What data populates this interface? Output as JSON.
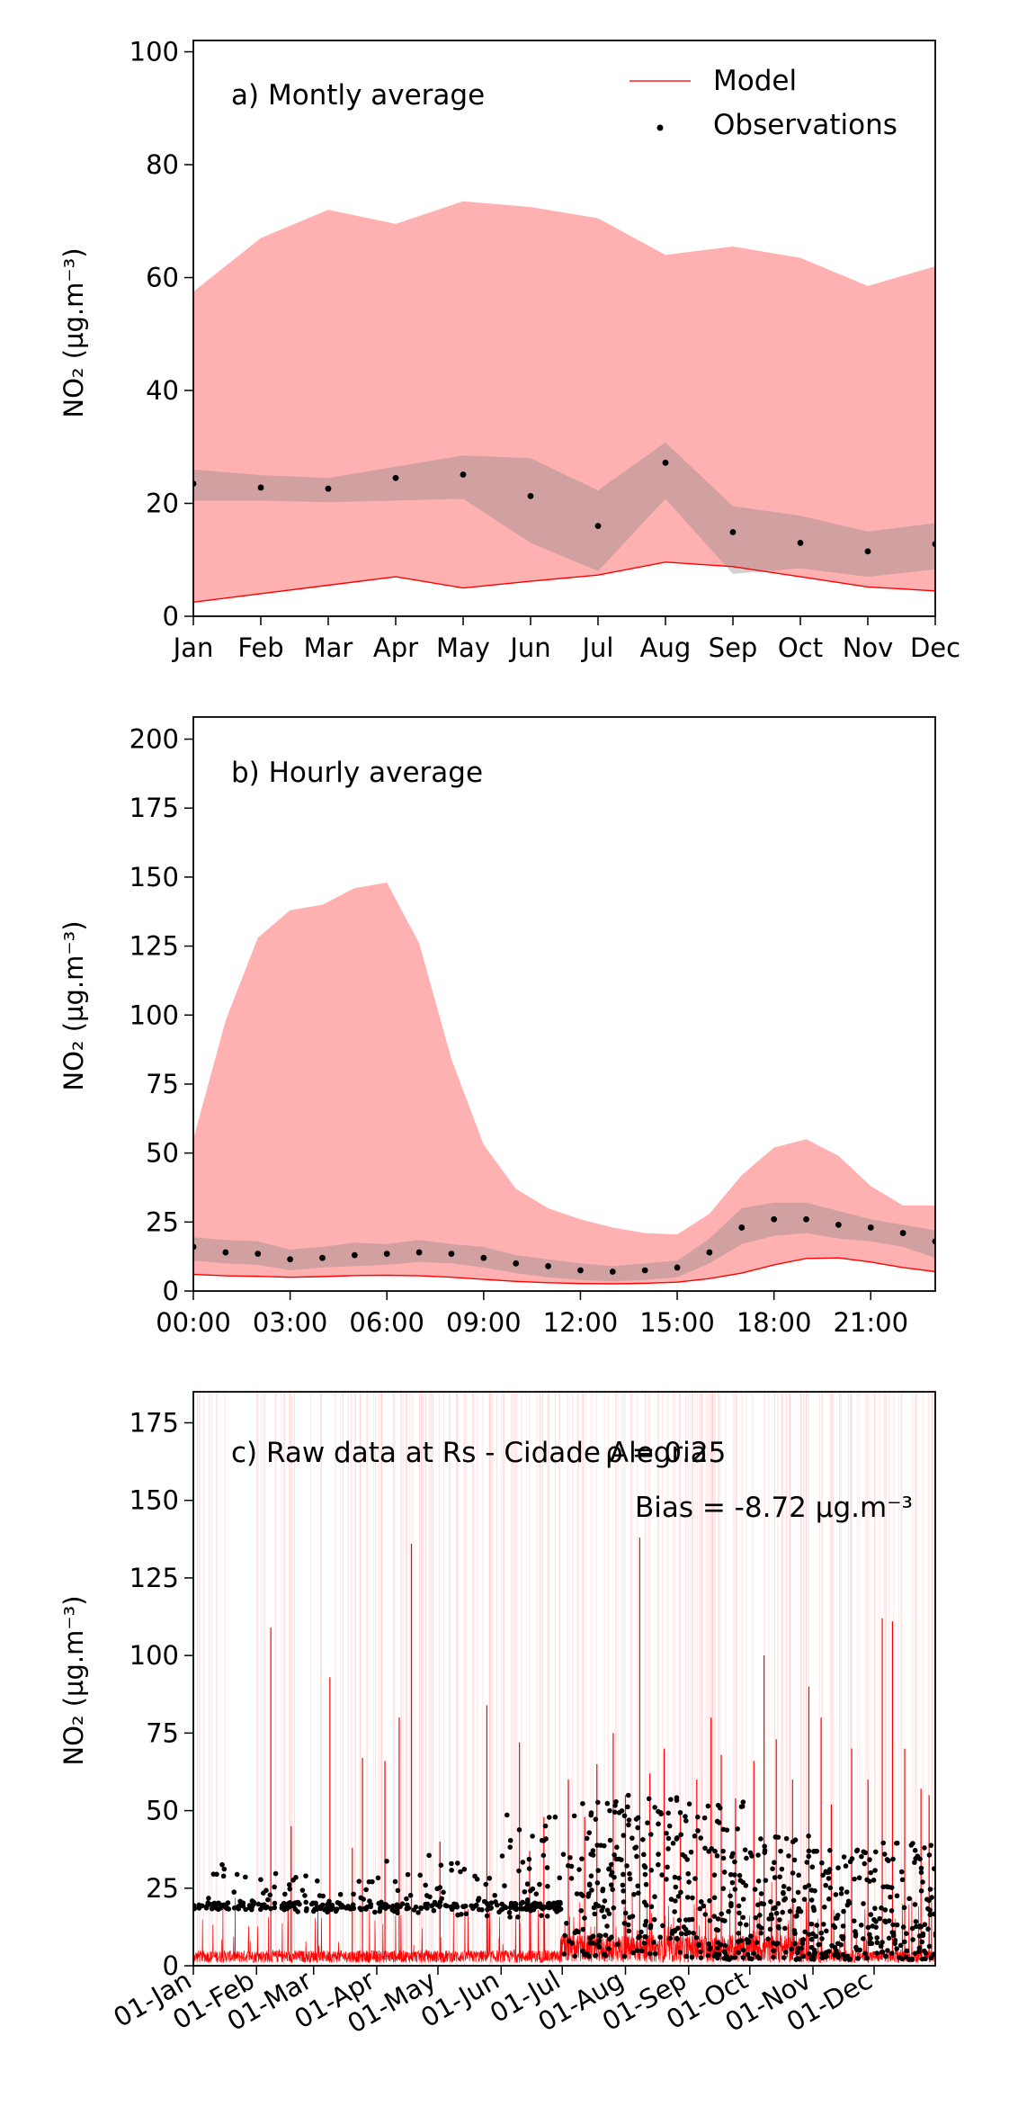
{
  "colors": {
    "model_line": "#ff0000",
    "model_band": "#ffb0b0",
    "obs_band": "#8c8c8c",
    "observations": "#000000",
    "raw_spikes": "#ffc8c8"
  },
  "chart_data": [
    {
      "type": "area",
      "panel_label": "a) Montly average",
      "ylabel": "NO₂ (µg.m⁻³)",
      "xlabel": "",
      "ylim": [
        0,
        102
      ],
      "yticks": [
        0,
        20,
        40,
        60,
        80,
        100
      ],
      "categories": [
        "Jan",
        "Feb",
        "Mar",
        "Apr",
        "May",
        "Jun",
        "Jul",
        "Aug",
        "Sep",
        "Oct",
        "Nov",
        "Dec"
      ],
      "legend": {
        "placement": "top-right",
        "entries": [
          "Model",
          "Observations"
        ]
      },
      "grid": false,
      "series": [
        {
          "name": "Model",
          "kind": "line",
          "values": [
            2.5,
            4.0,
            5.5,
            7.0,
            5.0,
            6.2,
            7.3,
            9.6,
            8.8,
            7.0,
            5.2,
            4.5
          ]
        },
        {
          "kind": "band",
          "lower": [
            2.5,
            4.0,
            5.5,
            7.0,
            5.0,
            6.2,
            7.3,
            9.6,
            8.8,
            7.0,
            5.2,
            4.5
          ],
          "upper": [
            57.5,
            67.0,
            72.0,
            69.5,
            73.5,
            72.5,
            70.5,
            64.0,
            65.5,
            63.5,
            58.5,
            62.0
          ]
        },
        {
          "name": "Observations",
          "kind": "scatter",
          "values": [
            23.5,
            22.8,
            22.6,
            24.5,
            25.1,
            21.3,
            16.0,
            27.2,
            14.9,
            13.0,
            11.5,
            12.8
          ]
        },
        {
          "kind": "band",
          "lower": [
            20.5,
            20.5,
            20.2,
            20.5,
            20.8,
            13.0,
            8.0,
            20.8,
            7.5,
            8.5,
            7.0,
            8.3
          ],
          "upper": [
            26.0,
            25.0,
            24.5,
            26.5,
            28.5,
            28.0,
            22.3,
            30.8,
            19.5,
            17.8,
            15.0,
            16.5
          ]
        }
      ]
    },
    {
      "type": "area",
      "panel_label": "b) Hourly average",
      "ylabel": "NO₂ (µg.m⁻³)",
      "xlabel": "",
      "ylim": [
        0,
        208
      ],
      "yticks": [
        0,
        25,
        50,
        75,
        100,
        125,
        150,
        175,
        200
      ],
      "xlim": [
        0,
        23
      ],
      "x": [
        0,
        1,
        2,
        3,
        4,
        5,
        6,
        7,
        8,
        9,
        10,
        11,
        12,
        13,
        14,
        15,
        16,
        17,
        18,
        19,
        20,
        21,
        22,
        23
      ],
      "xtick_values": [
        0,
        3,
        6,
        9,
        12,
        15,
        18,
        21
      ],
      "xtick_labels": [
        "00:00",
        "03:00",
        "06:00",
        "09:00",
        "12:00",
        "15:00",
        "18:00",
        "21:00"
      ],
      "grid": false,
      "series": [
        {
          "name": "Model",
          "kind": "line",
          "values": [
            6,
            5.5,
            5.3,
            5.0,
            5.2,
            5.6,
            5.7,
            5.5,
            5.0,
            4.2,
            3.5,
            3.0,
            2.7,
            2.6,
            2.8,
            3.2,
            4.5,
            6.5,
            9.5,
            11.8,
            12.0,
            10.5,
            8.5,
            7.0
          ]
        },
        {
          "kind": "band",
          "lower": [
            6,
            5.5,
            5.3,
            5.0,
            5.2,
            5.6,
            5.7,
            5.5,
            5.0,
            4.2,
            3.5,
            3.0,
            2.7,
            2.6,
            2.8,
            3.2,
            4.5,
            6.5,
            9.5,
            11.8,
            12.0,
            10.5,
            8.5,
            7.0
          ],
          "upper": [
            55,
            98,
            128,
            138,
            140,
            146,
            148,
            126,
            84,
            53,
            37,
            30,
            26,
            23,
            21,
            20.5,
            28,
            42,
            52,
            55,
            49,
            38,
            31,
            31
          ]
        },
        {
          "name": "Observations",
          "kind": "scatter",
          "values": [
            16,
            14,
            13.5,
            11.5,
            12,
            13,
            13.5,
            14,
            13.5,
            12,
            10,
            9,
            7.5,
            7,
            7.5,
            8.5,
            14,
            23,
            26,
            26,
            24,
            23,
            21,
            18
          ]
        },
        {
          "kind": "band",
          "lower": [
            11,
            10,
            9.5,
            7.5,
            8.5,
            9,
            9.5,
            10.5,
            10,
            8.5,
            6.5,
            5,
            4,
            3.5,
            4,
            5,
            10,
            17,
            20,
            21,
            19,
            18,
            16,
            12
          ],
          "upper": [
            19.5,
            18.5,
            18,
            15,
            16,
            17.5,
            17,
            18.5,
            17,
            16,
            13,
            11.5,
            10,
            9,
            10,
            11,
            19,
            30,
            32,
            32,
            29,
            26,
            24,
            22
          ]
        }
      ]
    },
    {
      "type": "scatter",
      "panel_label": "c) Raw data at Rs - Cidade Alegria",
      "stat_rho": "ρ = 0.25",
      "stat_bias": "Bias = -8.72 µg.m⁻³",
      "ylabel": "NO₂ (µg.m⁻³)",
      "xlabel": "",
      "ylim": [
        0,
        185
      ],
      "yticks": [
        0,
        25,
        50,
        75,
        100,
        125,
        150,
        175
      ],
      "xlim": [
        "2019-01-01",
        "2019-12-31"
      ],
      "xtick_values": [
        "2019-01-01",
        "2019-02-01",
        "2019-03-01",
        "2019-04-01",
        "2019-05-01",
        "2019-06-01",
        "2019-07-01",
        "2019-08-01",
        "2019-09-01",
        "2019-10-01",
        "2019-11-01",
        "2019-12-01"
      ],
      "xtick_labels": [
        "01-Jan",
        "01-Feb",
        "01-Mar",
        "01-Apr",
        "01-May",
        "01-Jun",
        "01-Jul",
        "01-Aug",
        "01-Sep",
        "01-Oct",
        "01-Nov",
        "01-Dec"
      ],
      "grid": false,
      "series": [
        {
          "name": "Model",
          "kind": "line",
          "note_values": "hourly model values; major spikes listed",
          "spikes": [
            {
              "x": "2019-02-08",
              "y": 109
            },
            {
              "x": "2019-02-18",
              "y": 45
            },
            {
              "x": "2019-03-09",
              "y": 93
            },
            {
              "x": "2019-03-20",
              "y": 38
            },
            {
              "x": "2019-03-25",
              "y": 67
            },
            {
              "x": "2019-04-05",
              "y": 66
            },
            {
              "x": "2019-04-12",
              "y": 80
            },
            {
              "x": "2019-04-18",
              "y": 136
            },
            {
              "x": "2019-05-02",
              "y": 40
            },
            {
              "x": "2019-05-25",
              "y": 84
            },
            {
              "x": "2019-06-10",
              "y": 72
            },
            {
              "x": "2019-06-15",
              "y": 37
            },
            {
              "x": "2019-06-22",
              "y": 48
            },
            {
              "x": "2019-07-04",
              "y": 60
            },
            {
              "x": "2019-07-12",
              "y": 48
            },
            {
              "x": "2019-07-18",
              "y": 65
            },
            {
              "x": "2019-07-26",
              "y": 75
            },
            {
              "x": "2019-08-01",
              "y": 55
            },
            {
              "x": "2019-08-08",
              "y": 138
            },
            {
              "x": "2019-08-13",
              "y": 62
            },
            {
              "x": "2019-08-20",
              "y": 70
            },
            {
              "x": "2019-08-28",
              "y": 50
            },
            {
              "x": "2019-09-05",
              "y": 60
            },
            {
              "x": "2019-09-12",
              "y": 80
            },
            {
              "x": "2019-09-17",
              "y": 68
            },
            {
              "x": "2019-09-24",
              "y": 54
            },
            {
              "x": "2019-10-03",
              "y": 66
            },
            {
              "x": "2019-10-08",
              "y": 100
            },
            {
              "x": "2019-10-14",
              "y": 73
            },
            {
              "x": "2019-10-22",
              "y": 60
            },
            {
              "x": "2019-10-30",
              "y": 90
            },
            {
              "x": "2019-11-05",
              "y": 80
            },
            {
              "x": "2019-11-10",
              "y": 52
            },
            {
              "x": "2019-11-20",
              "y": 70
            },
            {
              "x": "2019-11-28",
              "y": 60
            },
            {
              "x": "2019-12-05",
              "y": 112
            },
            {
              "x": "2019-12-10",
              "y": 111
            },
            {
              "x": "2019-12-16",
              "y": 70
            },
            {
              "x": "2019-12-24",
              "y": 57
            },
            {
              "x": "2019-12-28",
              "y": 55
            }
          ]
        },
        {
          "name": "Observations",
          "kind": "scatter",
          "level_by_month": [
            {
              "month": "Jan",
              "low": 18,
              "high": 33
            },
            {
              "month": "Feb",
              "low": 17,
              "high": 30
            },
            {
              "month": "Mar",
              "low": 17,
              "high": 28
            },
            {
              "month": "Apr",
              "low": 17,
              "high": 38
            },
            {
              "month": "May",
              "low": 16,
              "high": 34
            },
            {
              "month": "Jun",
              "low": 15,
              "high": 49
            },
            {
              "month": "Jul",
              "low": 3,
              "high": 53
            },
            {
              "month": "Aug",
              "low": 3,
              "high": 55
            },
            {
              "month": "Sep",
              "low": 2,
              "high": 53
            },
            {
              "month": "Oct",
              "low": 2,
              "high": 42
            },
            {
              "month": "Nov",
              "low": 2,
              "high": 38
            },
            {
              "month": "Dec",
              "low": 2,
              "high": 40
            }
          ]
        }
      ]
    }
  ]
}
